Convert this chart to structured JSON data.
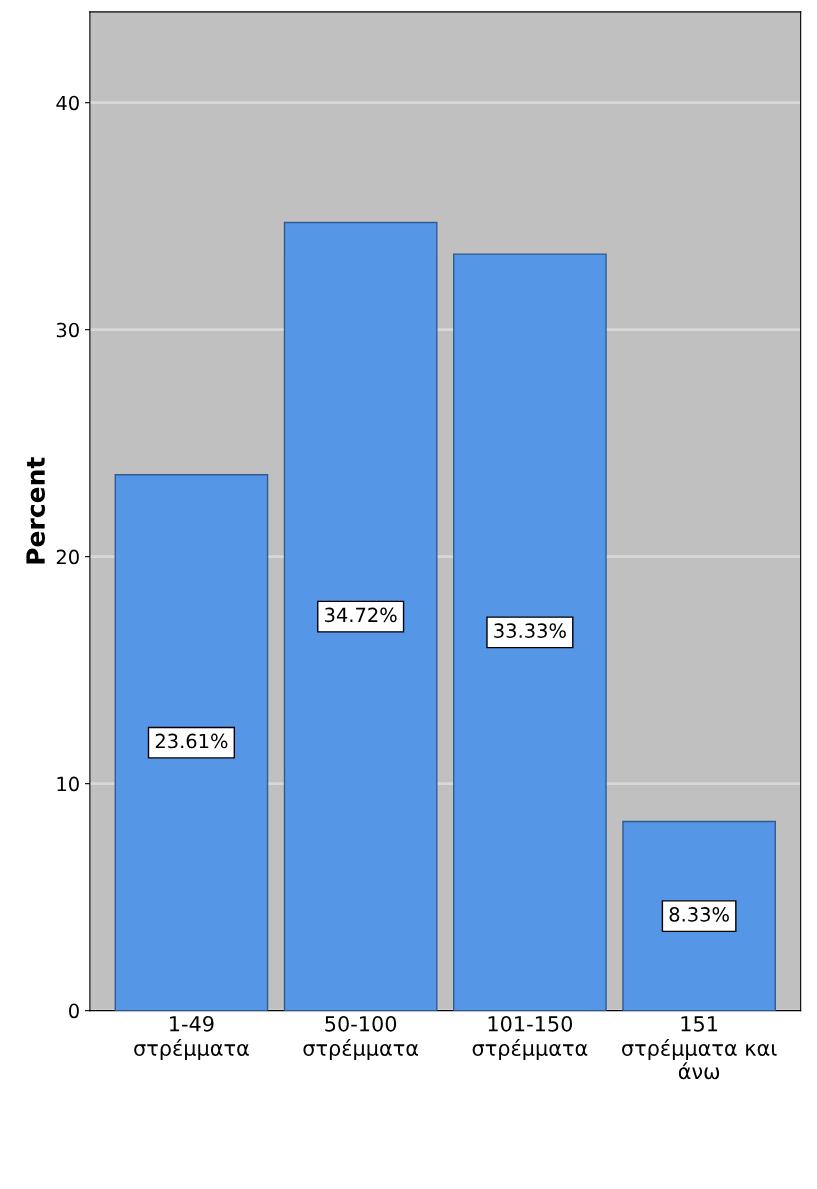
{
  "chart_data": {
    "type": "bar",
    "ylabel": "Percent",
    "categories": [
      "1-49\nστρέμματα",
      "50-100\nστρέμματα",
      "101-150\nστρέμματα",
      "151\nστρέμματα και\nάνω"
    ],
    "values": [
      23.61,
      34.72,
      33.33,
      8.33
    ],
    "value_labels": [
      "23.61%",
      "34.72%",
      "33.33%",
      "8.33%"
    ],
    "color": "#5596e6",
    "ylim": [
      0,
      44
    ],
    "yticks": [
      0,
      10,
      20,
      30,
      40
    ],
    "grid": "y"
  }
}
